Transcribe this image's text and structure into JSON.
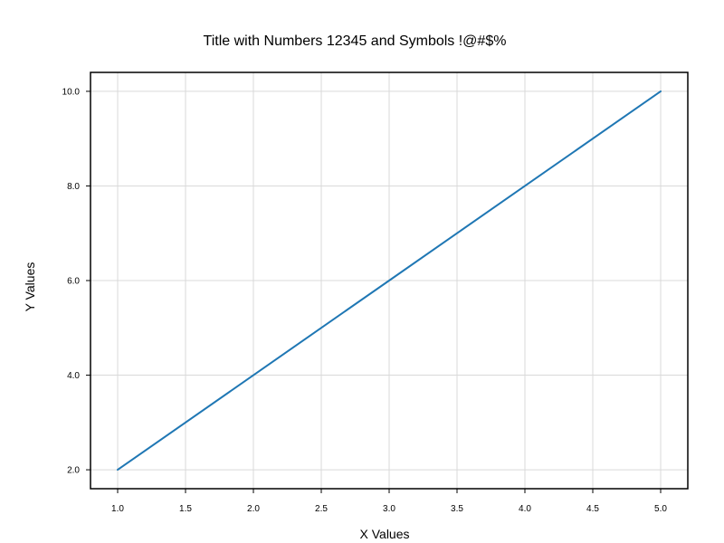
{
  "chart_data": {
    "type": "line",
    "title": "Title with Numbers 12345 and Symbols !@#$%",
    "xlabel": "X Values",
    "ylabel": "Y Values",
    "x": [
      1.0,
      2.0,
      3.0,
      4.0,
      5.0
    ],
    "series": [
      {
        "values": [
          2.0,
          4.0,
          6.0,
          8.0,
          10.0
        ],
        "color": "#1f77b4"
      }
    ],
    "xlim": [
      0.8,
      5.2
    ],
    "ylim": [
      1.6,
      10.4
    ],
    "x_ticks": [
      1.0,
      1.5,
      2.0,
      2.5,
      3.0,
      3.5,
      4.0,
      4.5,
      5.0
    ],
    "x_tick_labels": [
      "1.0",
      "1.5",
      "2.0",
      "2.5",
      "3.0",
      "3.5",
      "4.0",
      "4.5",
      "5.0"
    ],
    "y_ticks": [
      2.0,
      4.0,
      6.0,
      8.0,
      10.0
    ],
    "y_tick_labels": [
      "2.0",
      "4.0",
      "6.0",
      "8.0",
      "10.0"
    ],
    "grid": true,
    "legend": false
  }
}
